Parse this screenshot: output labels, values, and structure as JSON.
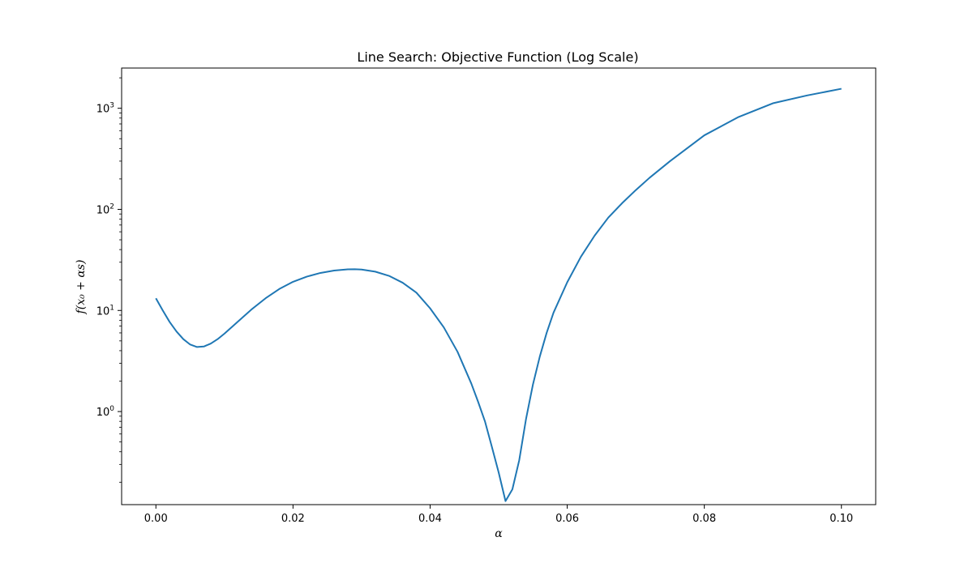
{
  "chart_data": {
    "type": "line",
    "title": "Line Search: Objective Function (Log Scale)",
    "xlabel": "α",
    "ylabel": "f(x₀ + αs)",
    "xlim": [
      -0.005,
      0.105
    ],
    "ylim": [
      0.12,
      2500
    ],
    "yscale": "log",
    "grid": false,
    "x_ticks": [
      0.0,
      0.02,
      0.04,
      0.06,
      0.08,
      0.1
    ],
    "x_tick_labels": [
      "0.00",
      "0.02",
      "0.04",
      "0.06",
      "0.08",
      "0.10"
    ],
    "y_ticks": [
      1,
      10,
      100,
      1000
    ],
    "y_tick_base": "10",
    "y_tick_exponents": [
      "0",
      "1",
      "2",
      "3"
    ],
    "series": [
      {
        "color": "#1f77b4",
        "x": [
          0.0,
          0.001,
          0.002,
          0.003,
          0.004,
          0.005,
          0.006,
          0.007,
          0.008,
          0.009,
          0.01,
          0.012,
          0.014,
          0.016,
          0.018,
          0.02,
          0.022,
          0.024,
          0.026,
          0.028,
          0.029,
          0.03,
          0.032,
          0.034,
          0.036,
          0.038,
          0.04,
          0.042,
          0.044,
          0.046,
          0.047,
          0.048,
          0.049,
          0.05,
          0.051,
          0.052,
          0.053,
          0.054,
          0.055,
          0.056,
          0.057,
          0.058,
          0.06,
          0.062,
          0.064,
          0.066,
          0.068,
          0.07,
          0.072,
          0.075,
          0.08,
          0.085,
          0.09,
          0.095,
          0.1
        ],
        "y": [
          13.2,
          10.0,
          7.7,
          6.2,
          5.2,
          4.6,
          4.35,
          4.4,
          4.7,
          5.2,
          5.9,
          7.8,
          10.3,
          13.2,
          16.3,
          19.2,
          21.6,
          23.5,
          24.8,
          25.5,
          25.6,
          25.4,
          24.2,
          22.0,
          18.8,
          15.0,
          10.5,
          6.8,
          3.9,
          1.9,
          1.25,
          0.8,
          0.45,
          0.25,
          0.13,
          0.17,
          0.33,
          0.85,
          1.85,
          3.5,
          6.0,
          9.5,
          19.0,
          34.0,
          55.0,
          83.0,
          115.0,
          155.0,
          205.0,
          300.0,
          540.0,
          820.0,
          1120.0,
          1340.0,
          1560.0
        ]
      }
    ]
  }
}
